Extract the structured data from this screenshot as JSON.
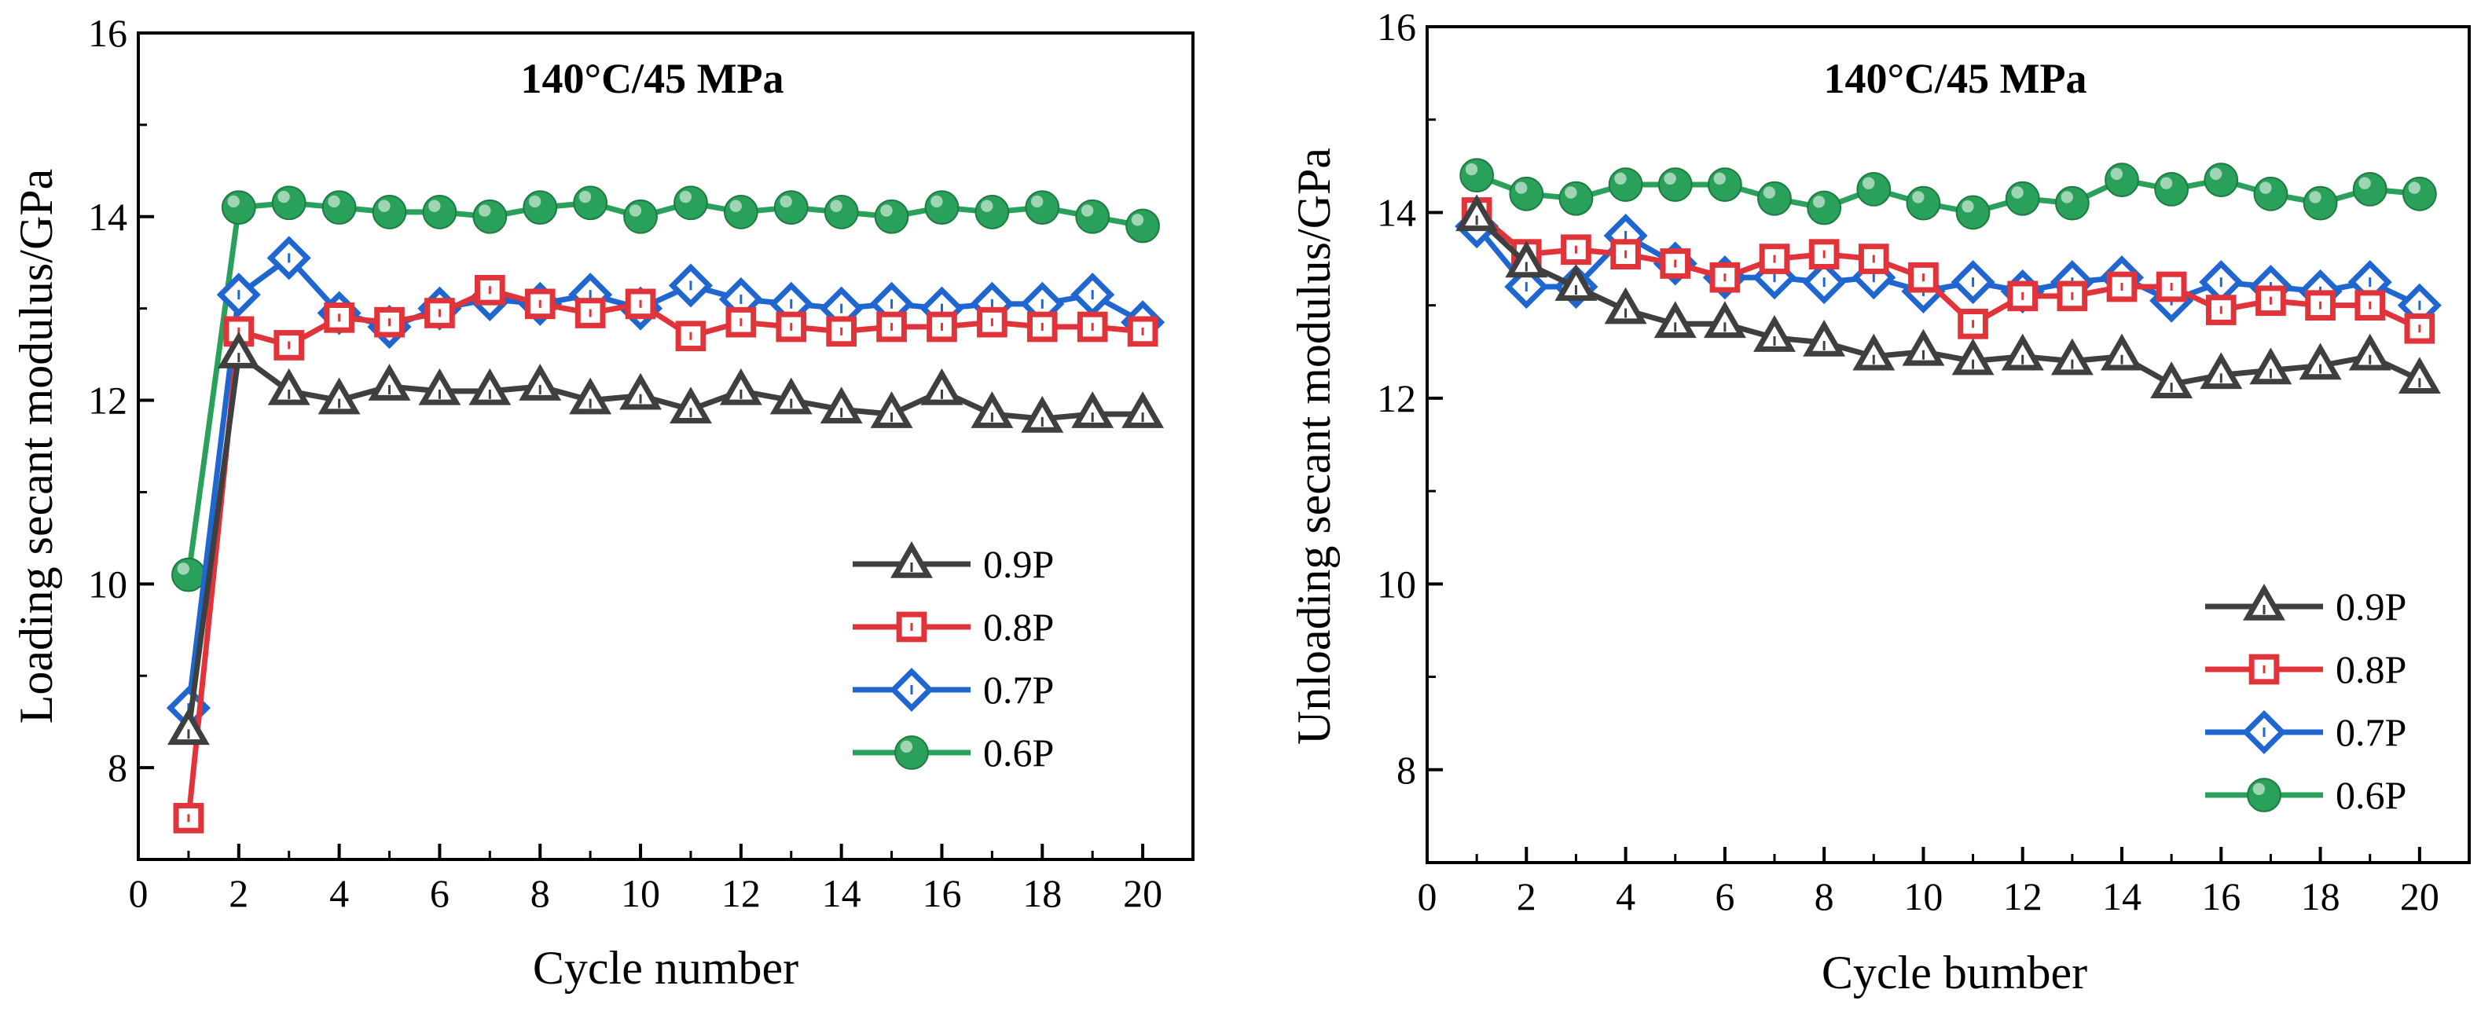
{
  "chart_data": [
    {
      "type": "line",
      "title": "140°C/45 MPa",
      "xlabel": "Cycle number",
      "ylabel": "Loading secant modulus/GPa",
      "xlim": [
        0,
        21
      ],
      "ylim": [
        7,
        16
      ],
      "xticks": [
        0,
        2,
        4,
        6,
        8,
        10,
        12,
        14,
        16,
        18,
        20
      ],
      "yticks": [
        8,
        10,
        12,
        14,
        16
      ],
      "legend_position": "lower-right",
      "x": [
        1,
        2,
        3,
        4,
        5,
        6,
        7,
        8,
        9,
        10,
        11,
        12,
        13,
        14,
        15,
        16,
        17,
        18,
        19,
        20
      ],
      "series": [
        {
          "name": "0.9P",
          "color": "#3f3f3f",
          "marker": "triangle",
          "values": [
            8.4,
            12.5,
            12.1,
            12.0,
            12.15,
            12.1,
            12.1,
            12.15,
            12.0,
            12.05,
            11.9,
            12.1,
            12.0,
            11.9,
            11.85,
            12.1,
            11.85,
            11.8,
            11.85,
            11.85
          ]
        },
        {
          "name": "0.8P",
          "color": "#e0343a",
          "marker": "square",
          "values": [
            7.45,
            12.75,
            12.6,
            12.9,
            12.85,
            12.95,
            13.2,
            13.05,
            12.95,
            13.05,
            12.7,
            12.85,
            12.8,
            12.75,
            12.8,
            12.8,
            12.85,
            12.8,
            12.8,
            12.75
          ]
        },
        {
          "name": "0.7P",
          "color": "#1f66d0",
          "marker": "diamond",
          "values": [
            8.65,
            13.15,
            13.55,
            12.95,
            12.8,
            13.0,
            13.1,
            13.05,
            13.15,
            13.0,
            13.25,
            13.1,
            13.05,
            13.0,
            13.05,
            13.0,
            13.05,
            13.05,
            13.15,
            12.85
          ]
        },
        {
          "name": "0.6P",
          "color": "#2aa15a",
          "marker": "circle",
          "values": [
            10.1,
            14.1,
            14.15,
            14.1,
            14.05,
            14.05,
            14.0,
            14.1,
            14.15,
            14.0,
            14.15,
            14.05,
            14.1,
            14.05,
            14.0,
            14.1,
            14.05,
            14.1,
            14.0,
            13.9
          ]
        }
      ]
    },
    {
      "type": "line",
      "title": "140°C/45 MPa",
      "xlabel": "Cycle bumber",
      "ylabel": "Unloading secant modulus/GPa",
      "xlim": [
        0,
        21
      ],
      "ylim": [
        7,
        16
      ],
      "xticks": [
        0,
        2,
        4,
        6,
        8,
        10,
        12,
        14,
        16,
        18,
        20
      ],
      "yticks": [
        8,
        10,
        12,
        14,
        16
      ],
      "legend_position": "lower-right",
      "x": [
        1,
        2,
        3,
        4,
        5,
        6,
        7,
        8,
        9,
        10,
        11,
        12,
        13,
        14,
        15,
        16,
        17,
        18,
        19,
        20
      ],
      "series": [
        {
          "name": "0.9P",
          "color": "#3f3f3f",
          "marker": "triangle",
          "values": [
            13.95,
            13.45,
            13.2,
            12.95,
            12.8,
            12.8,
            12.65,
            12.6,
            12.45,
            12.5,
            12.4,
            12.45,
            12.4,
            12.45,
            12.15,
            12.25,
            12.3,
            12.35,
            12.45,
            12.2
          ]
        },
        {
          "name": "0.8P",
          "color": "#e0343a",
          "marker": "square",
          "values": [
            14.0,
            13.55,
            13.6,
            13.55,
            13.45,
            13.3,
            13.5,
            13.55,
            13.5,
            13.3,
            12.8,
            13.1,
            13.1,
            13.2,
            13.2,
            12.95,
            13.05,
            13.0,
            13.0,
            12.75
          ]
        },
        {
          "name": "0.7P",
          "color": "#1f66d0",
          "marker": "diamond",
          "values": [
            13.85,
            13.2,
            13.2,
            13.75,
            13.45,
            13.3,
            13.3,
            13.25,
            13.3,
            13.15,
            13.25,
            13.15,
            13.25,
            13.3,
            13.05,
            13.25,
            13.2,
            13.15,
            13.25,
            13.0
          ]
        },
        {
          "name": "0.6P",
          "color": "#2aa15a",
          "marker": "circle",
          "values": [
            14.4,
            14.2,
            14.15,
            14.3,
            14.3,
            14.3,
            14.15,
            14.05,
            14.25,
            14.1,
            14.0,
            14.15,
            14.1,
            14.35,
            14.25,
            14.35,
            14.2,
            14.1,
            14.25,
            14.2
          ]
        }
      ]
    }
  ]
}
